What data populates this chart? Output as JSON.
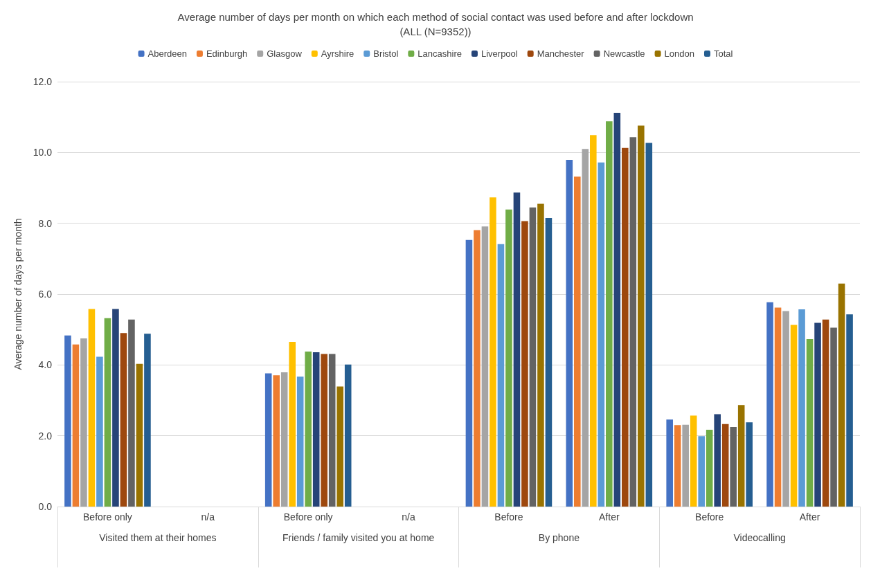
{
  "chart_data": {
    "type": "bar",
    "title": "Average number of days per month on which each method of social contact was used before and after lockdown",
    "subtitle": "(ALL (N=9352))",
    "ylabel": "Average number of days per month",
    "categories": [
      "Before only",
      "n/a",
      "Before only",
      "n/a",
      "Before",
      "After",
      "Before",
      "After"
    ],
    "annotations": [
      "Visited them at their homes",
      "Friends / family visited you at home",
      "By phone",
      "Videocalling"
    ],
    "ylim": [
      0,
      12
    ],
    "yticks": [
      {
        "value": 0,
        "label": "0.0"
      },
      {
        "value": 2,
        "label": "2.0"
      },
      {
        "value": 4,
        "label": "4.0"
      },
      {
        "value": 6,
        "label": "6.0"
      },
      {
        "value": 8,
        "label": "8.0"
      },
      {
        "value": 10,
        "label": "10.0"
      },
      {
        "value": 12,
        "label": "12.0"
      }
    ],
    "grid": "y",
    "legend": "top",
    "series": [
      {
        "name": "Aberdeen",
        "color": "#4472c4",
        "values": [
          4.83,
          null,
          3.76,
          null,
          7.53,
          9.79,
          2.46,
          5.77
        ]
      },
      {
        "name": "Edinburgh",
        "color": "#ed7d31",
        "values": [
          4.58,
          null,
          3.71,
          null,
          7.81,
          9.32,
          2.3,
          5.62
        ]
      },
      {
        "name": "Glasgow",
        "color": "#a5a5a5",
        "values": [
          4.75,
          null,
          3.79,
          null,
          7.91,
          10.1,
          2.31,
          5.52
        ]
      },
      {
        "name": "Ayrshire",
        "color": "#ffc000",
        "values": [
          5.58,
          null,
          4.65,
          null,
          8.73,
          10.49,
          2.57,
          5.13
        ]
      },
      {
        "name": "Bristol",
        "color": "#5b9bd5",
        "values": [
          4.23,
          null,
          3.67,
          null,
          7.41,
          9.72,
          1.99,
          5.57
        ]
      },
      {
        "name": "Lancashire",
        "color": "#70ad47",
        "values": [
          5.32,
          null,
          4.38,
          null,
          8.39,
          10.88,
          2.17,
          4.73
        ]
      },
      {
        "name": "Liverpool",
        "color": "#264478",
        "values": [
          5.58,
          null,
          4.36,
          null,
          8.87,
          11.12,
          2.61,
          5.19
        ]
      },
      {
        "name": "Manchester",
        "color": "#9e480e",
        "values": [
          4.9,
          null,
          4.31,
          null,
          8.06,
          10.13,
          2.33,
          5.28
        ]
      },
      {
        "name": "Newcastle",
        "color": "#636363",
        "values": [
          5.28,
          null,
          4.31,
          null,
          8.45,
          10.43,
          2.25,
          5.05
        ]
      },
      {
        "name": "London",
        "color": "#997300",
        "values": [
          4.03,
          null,
          3.39,
          null,
          8.55,
          10.76,
          2.87,
          6.3
        ]
      },
      {
        "name": "Total",
        "color": "#255e91",
        "values": [
          4.88,
          null,
          4.01,
          null,
          8.15,
          10.27,
          2.38,
          5.43
        ]
      }
    ]
  }
}
